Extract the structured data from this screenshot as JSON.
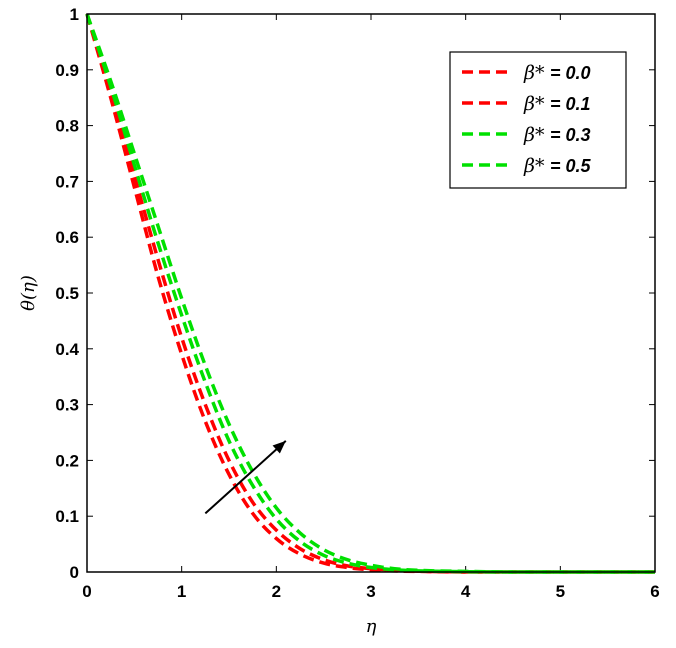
{
  "chart_data": {
    "type": "line",
    "xlabel": "η",
    "ylabel": "θ(η)",
    "xlim": [
      0,
      6
    ],
    "ylim": [
      0,
      1
    ],
    "xticks": [
      0,
      1,
      2,
      3,
      4,
      5,
      6
    ],
    "yticks": [
      0,
      0.1,
      0.2,
      0.3,
      0.4,
      0.5,
      0.6,
      0.7,
      0.8,
      0.9,
      1
    ],
    "grid": false,
    "legend_position": "top-right",
    "line_style": "dashed",
    "series": [
      {
        "name": "β* = 0.0",
        "legend_symbol": "β*",
        "legend_value": "= 0.0",
        "color": "#ff0000",
        "x": [
          0,
          0.25,
          0.5,
          0.75,
          1,
          1.25,
          1.5,
          1.75,
          2,
          2.25,
          2.5,
          2.75,
          3,
          3.25,
          3.5,
          4,
          4.5,
          5,
          5.5,
          6
        ],
        "y": [
          1,
          0.85,
          0.69,
          0.53,
          0.39,
          0.27,
          0.175,
          0.105,
          0.06,
          0.032,
          0.016,
          0.008,
          0.004,
          0.002,
          0.001,
          0,
          0,
          0,
          0,
          0
        ]
      },
      {
        "name": "β* = 0.1",
        "legend_symbol": "β*",
        "legend_value": "= 0.1",
        "color": "#ff0000",
        "x": [
          0,
          0.25,
          0.5,
          0.75,
          1,
          1.25,
          1.5,
          1.75,
          2,
          2.25,
          2.5,
          2.75,
          3,
          3.25,
          3.5,
          4,
          4.5,
          5,
          5.5,
          6
        ],
        "y": [
          1,
          0.86,
          0.71,
          0.56,
          0.42,
          0.3,
          0.2,
          0.125,
          0.075,
          0.042,
          0.022,
          0.011,
          0.006,
          0.003,
          0.0015,
          0,
          0,
          0,
          0,
          0
        ]
      },
      {
        "name": "β* = 0.3",
        "legend_symbol": "β*",
        "legend_value": "= 0.3",
        "color": "#00e000",
        "x": [
          0,
          0.25,
          0.5,
          0.75,
          1,
          1.25,
          1.5,
          1.75,
          2,
          2.25,
          2.5,
          2.75,
          3,
          3.25,
          3.5,
          4,
          4.5,
          5,
          5.5,
          6
        ],
        "y": [
          1,
          0.87,
          0.73,
          0.59,
          0.46,
          0.34,
          0.235,
          0.155,
          0.095,
          0.055,
          0.03,
          0.016,
          0.008,
          0.004,
          0.002,
          0.0005,
          0,
          0,
          0,
          0
        ]
      },
      {
        "name": "β* = 0.5",
        "legend_symbol": "β*",
        "legend_value": "= 0.5",
        "color": "#00e000",
        "x": [
          0,
          0.25,
          0.5,
          0.75,
          1,
          1.25,
          1.5,
          1.75,
          2,
          2.25,
          2.5,
          2.75,
          3,
          3.25,
          3.5,
          4,
          4.5,
          5,
          5.5,
          6
        ],
        "y": [
          1,
          0.88,
          0.75,
          0.62,
          0.49,
          0.37,
          0.265,
          0.18,
          0.115,
          0.07,
          0.04,
          0.022,
          0.012,
          0.006,
          0.003,
          0.001,
          0,
          0,
          0,
          0
        ]
      }
    ],
    "annotations": [
      {
        "type": "arrow",
        "from": [
          1.25,
          0.105
        ],
        "to": [
          2.1,
          0.235
        ]
      }
    ]
  }
}
